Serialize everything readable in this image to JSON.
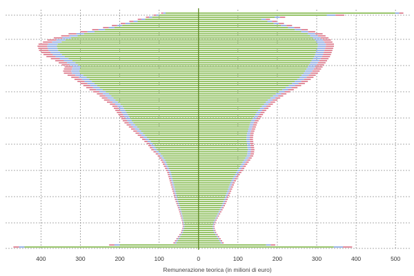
{
  "chart_data": {
    "type": "bar",
    "orientation": "horizontal",
    "layout": "diverging-pyramid",
    "xlabel": "Remunerazione teorica (in milioni di euro)",
    "xlim": [
      -490,
      540
    ],
    "x_tick_values": [
      -400,
      -300,
      -200,
      -100,
      0,
      100,
      200,
      300,
      400,
      500
    ],
    "x_tick_labels": [
      "400",
      "300",
      "200",
      "100",
      "0",
      "100",
      "200",
      "300",
      "400",
      "500"
    ],
    "grid": true,
    "series_colors": {
      "outer": "#e08a9a",
      "middle": "#98b3e6",
      "inner": "#97c46a"
    },
    "axis_color": "#5f8a25",
    "notes": "Each row reconstructs stacked widths from the visible pyramid contour."
  }
}
